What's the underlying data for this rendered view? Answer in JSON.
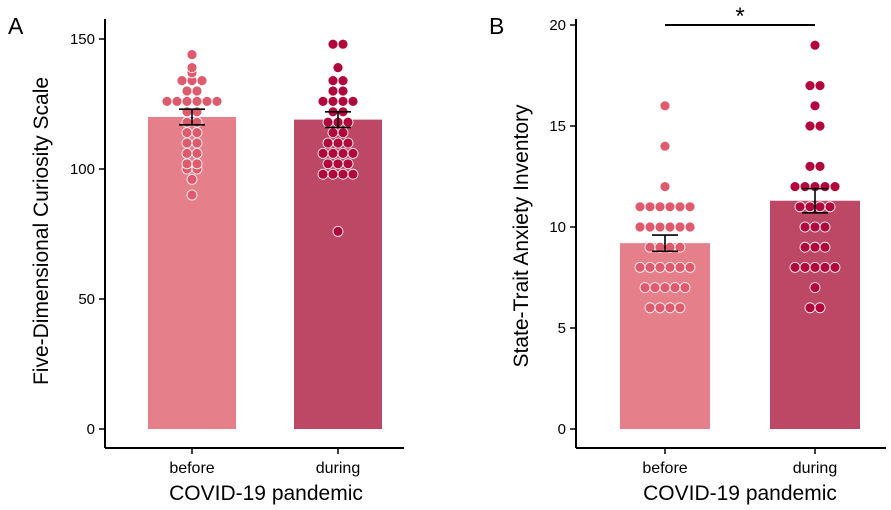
{
  "chart_data": [
    {
      "panel_label": "A",
      "type": "bar",
      "xlabel": "COVID-19 pandemic",
      "ylabel": "Five-Dimensional Curiosity Scale",
      "ylim": [
        0,
        150
      ],
      "yticks": [
        "0",
        "50",
        "100",
        "150"
      ],
      "categories": [
        "before",
        "during"
      ],
      "values": [
        120,
        119
      ],
      "error": [
        [
          117,
          123
        ],
        [
          116,
          122
        ]
      ],
      "points": [
        [
          90,
          96,
          100,
          100,
          102,
          102,
          106,
          106,
          110,
          110,
          114,
          114,
          118,
          118,
          122,
          122,
          126,
          126,
          126,
          126,
          126,
          126,
          130,
          130,
          134,
          134,
          134,
          137,
          139,
          144
        ],
        [
          76,
          98,
          98,
          98,
          98,
          102,
          102,
          102,
          106,
          106,
          106,
          106,
          110,
          110,
          110,
          114,
          114,
          118,
          118,
          118,
          122,
          122,
          126,
          126,
          126,
          126,
          130,
          130,
          134,
          134,
          139,
          148,
          148
        ]
      ],
      "colors": {
        "before": "#e5808b",
        "during": "#bd4866",
        "before_points": "#dd5b6d",
        "during_points": "#b0083d"
      },
      "significance": null
    },
    {
      "panel_label": "B",
      "type": "bar",
      "xlabel": "COVID-19 pandemic",
      "ylabel": "State-Trait Anxiety Inventory",
      "ylim": [
        0,
        20
      ],
      "yticks": [
        "0",
        "5",
        "10",
        "15",
        "20"
      ],
      "categories": [
        "before",
        "during"
      ],
      "values": [
        9.2,
        11.3
      ],
      "error": [
        [
          8.8,
          9.6
        ],
        [
          10.7,
          11.9
        ]
      ],
      "points": [
        [
          6,
          6,
          6,
          6,
          7,
          7,
          7,
          7,
          7,
          8,
          8,
          8,
          8,
          8,
          8,
          9,
          9,
          9,
          9,
          10,
          10,
          10,
          10,
          10,
          10,
          11,
          11,
          11,
          11,
          11,
          11,
          12,
          14,
          16
        ],
        [
          6,
          6,
          7,
          8,
          8,
          8,
          8,
          8,
          9,
          9,
          9,
          10,
          10,
          10,
          11,
          11,
          11,
          11,
          12,
          12,
          12,
          12,
          12,
          13,
          13,
          15,
          15,
          16,
          17,
          17,
          19
        ]
      ],
      "colors": {
        "before": "#e5808b",
        "during": "#bd4866",
        "before_points": "#dd5b6d",
        "during_points": "#b0083d"
      },
      "significance": "*"
    }
  ]
}
